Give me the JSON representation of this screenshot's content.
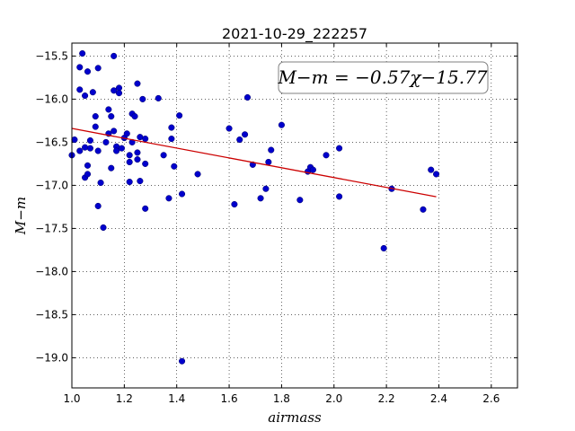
{
  "chart_data": {
    "type": "scatter",
    "title": "2021-10-29_222257",
    "xlabel": "airmass",
    "ylabel": "M−m",
    "xlim": [
      1.0,
      2.7
    ],
    "ylim": [
      -19.35,
      -15.35
    ],
    "y_inverted": false,
    "grid": true,
    "xticks": [
      1.0,
      1.2,
      1.4,
      1.6,
      1.8,
      2.0,
      2.2,
      2.4,
      2.6
    ],
    "xtick_labels": [
      "1.0",
      "1.2",
      "1.4",
      "1.6",
      "1.8",
      "2.0",
      "2.2",
      "2.4",
      "2.6"
    ],
    "yticks": [
      -15.5,
      -16.0,
      -16.5,
      -17.0,
      -17.5,
      -18.0,
      -18.5,
      -19.0
    ],
    "ytick_labels": [
      "−15.5",
      "−16.0",
      "−16.5",
      "−17.0",
      "−17.5",
      "−18.0",
      "−18.5",
      "−19.0"
    ],
    "annotation": "M−m = −0.57χ−15.77",
    "colors": {
      "points": "#0000cc",
      "fit_line": "#cc0000"
    },
    "fit_line": {
      "slope": -0.57,
      "intercept": -15.77,
      "x_range": [
        1.0,
        2.39
      ]
    },
    "points": [
      {
        "x": 1.0,
        "y": -16.65
      },
      {
        "x": 1.01,
        "y": -16.47
      },
      {
        "x": 1.03,
        "y": -15.63
      },
      {
        "x": 1.03,
        "y": -15.89
      },
      {
        "x": 1.04,
        "y": -15.47
      },
      {
        "x": 1.03,
        "y": -16.6
      },
      {
        "x": 1.05,
        "y": -16.56
      },
      {
        "x": 1.05,
        "y": -15.96
      },
      {
        "x": 1.06,
        "y": -15.68
      },
      {
        "x": 1.05,
        "y": -16.91
      },
      {
        "x": 1.06,
        "y": -16.87
      },
      {
        "x": 1.06,
        "y": -16.77
      },
      {
        "x": 1.07,
        "y": -16.48
      },
      {
        "x": 1.07,
        "y": -16.57
      },
      {
        "x": 1.08,
        "y": -15.92
      },
      {
        "x": 1.09,
        "y": -16.2
      },
      {
        "x": 1.09,
        "y": -16.32
      },
      {
        "x": 1.1,
        "y": -15.64
      },
      {
        "x": 1.1,
        "y": -16.6
      },
      {
        "x": 1.1,
        "y": -17.24
      },
      {
        "x": 1.11,
        "y": -16.97
      },
      {
        "x": 1.12,
        "y": -17.49
      },
      {
        "x": 1.13,
        "y": -16.5
      },
      {
        "x": 1.14,
        "y": -16.12
      },
      {
        "x": 1.14,
        "y": -16.4
      },
      {
        "x": 1.15,
        "y": -16.2
      },
      {
        "x": 1.15,
        "y": -16.8
      },
      {
        "x": 1.16,
        "y": -15.9
      },
      {
        "x": 1.16,
        "y": -16.37
      },
      {
        "x": 1.16,
        "y": -15.5
      },
      {
        "x": 1.17,
        "y": -16.55
      },
      {
        "x": 1.17,
        "y": -16.6
      },
      {
        "x": 1.18,
        "y": -15.87
      },
      {
        "x": 1.18,
        "y": -15.93
      },
      {
        "x": 1.19,
        "y": -16.57
      },
      {
        "x": 1.2,
        "y": -16.45
      },
      {
        "x": 1.21,
        "y": -16.4
      },
      {
        "x": 1.22,
        "y": -16.96
      },
      {
        "x": 1.22,
        "y": -16.65
      },
      {
        "x": 1.22,
        "y": -16.73
      },
      {
        "x": 1.23,
        "y": -16.17
      },
      {
        "x": 1.23,
        "y": -16.5
      },
      {
        "x": 1.24,
        "y": -16.2
      },
      {
        "x": 1.25,
        "y": -16.7
      },
      {
        "x": 1.25,
        "y": -15.82
      },
      {
        "x": 1.25,
        "y": -16.62
      },
      {
        "x": 1.26,
        "y": -16.44
      },
      {
        "x": 1.26,
        "y": -16.95
      },
      {
        "x": 1.27,
        "y": -16.0
      },
      {
        "x": 1.28,
        "y": -16.46
      },
      {
        "x": 1.28,
        "y": -16.75
      },
      {
        "x": 1.28,
        "y": -17.27
      },
      {
        "x": 1.33,
        "y": -15.99
      },
      {
        "x": 1.35,
        "y": -16.65
      },
      {
        "x": 1.37,
        "y": -17.15
      },
      {
        "x": 1.38,
        "y": -16.46
      },
      {
        "x": 1.38,
        "y": -16.33
      },
      {
        "x": 1.39,
        "y": -16.78
      },
      {
        "x": 1.41,
        "y": -16.19
      },
      {
        "x": 1.42,
        "y": -17.1
      },
      {
        "x": 1.42,
        "y": -19.04
      },
      {
        "x": 1.48,
        "y": -16.87
      },
      {
        "x": 1.6,
        "y": -16.34
      },
      {
        "x": 1.62,
        "y": -17.22
      },
      {
        "x": 1.64,
        "y": -16.47
      },
      {
        "x": 1.66,
        "y": -16.41
      },
      {
        "x": 1.67,
        "y": -15.98
      },
      {
        "x": 1.69,
        "y": -16.76
      },
      {
        "x": 1.72,
        "y": -17.15
      },
      {
        "x": 1.74,
        "y": -17.04
      },
      {
        "x": 1.75,
        "y": -16.73
      },
      {
        "x": 1.76,
        "y": -16.59
      },
      {
        "x": 1.8,
        "y": -16.3
      },
      {
        "x": 1.87,
        "y": -17.17
      },
      {
        "x": 1.9,
        "y": -16.84
      },
      {
        "x": 1.91,
        "y": -16.79
      },
      {
        "x": 1.92,
        "y": -16.82
      },
      {
        "x": 1.97,
        "y": -16.65
      },
      {
        "x": 2.02,
        "y": -16.57
      },
      {
        "x": 2.02,
        "y": -17.13
      },
      {
        "x": 2.19,
        "y": -17.73
      },
      {
        "x": 2.22,
        "y": -17.04
      },
      {
        "x": 2.34,
        "y": -17.28
      },
      {
        "x": 2.37,
        "y": -16.82
      },
      {
        "x": 2.39,
        "y": -16.87
      }
    ]
  }
}
